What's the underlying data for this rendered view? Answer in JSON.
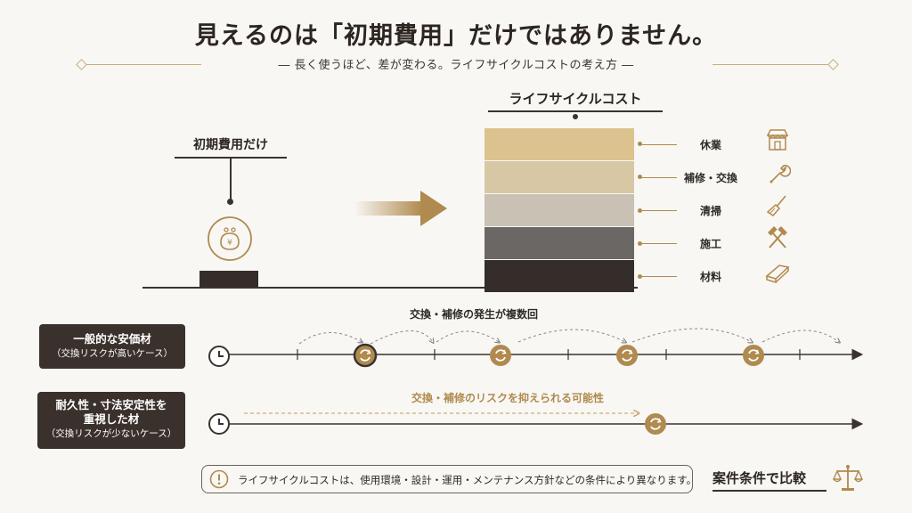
{
  "header": {
    "title": "見えるのは「初期費用」だけではありません。",
    "subtitle": "― 長く使うほど、差が変わる。ライフサイクルコストの考え方 ―"
  },
  "left_block": {
    "label": "初期費用だけ",
    "icon": "coin-purse-yen-icon"
  },
  "right_block": {
    "label": "ライフサイクルコスト",
    "segments": [
      {
        "name": "休業",
        "color": "#dcc28e",
        "icon": "store-icon"
      },
      {
        "name": "補修・交換",
        "color": "#d7c7a4",
        "icon": "wrench-icon"
      },
      {
        "name": "清掃",
        "color": "#c8c1b4",
        "icon": "broom-icon"
      },
      {
        "name": "施工",
        "color": "#6b6764",
        "icon": "hammer-icon"
      },
      {
        "name": "材料",
        "color": "#342d29",
        "icon": "lumber-icon"
      }
    ]
  },
  "timeline_1": {
    "tag_line1": "一般的な安価材",
    "tag_line2": "（交換リスクが高いケース）",
    "annotation": "交換・補修の発生が複数回"
  },
  "timeline_2": {
    "tag_line1": "耐久性・寸法安定性を",
    "tag_line1b": "重視した材",
    "tag_line2": "（交換リスクが少ないケース）",
    "annotation": "交換・補修のリスクを抑えられる可能性"
  },
  "footer": {
    "note": "ライフサイクルコストは、使用環境・設計・運用・メンテナンス方針などの条件により異なります。",
    "compare_label": "案件条件で比較",
    "compare_icon": "scale-icon"
  },
  "colors": {
    "gold": "#b08a4e",
    "dark": "#342d29"
  }
}
